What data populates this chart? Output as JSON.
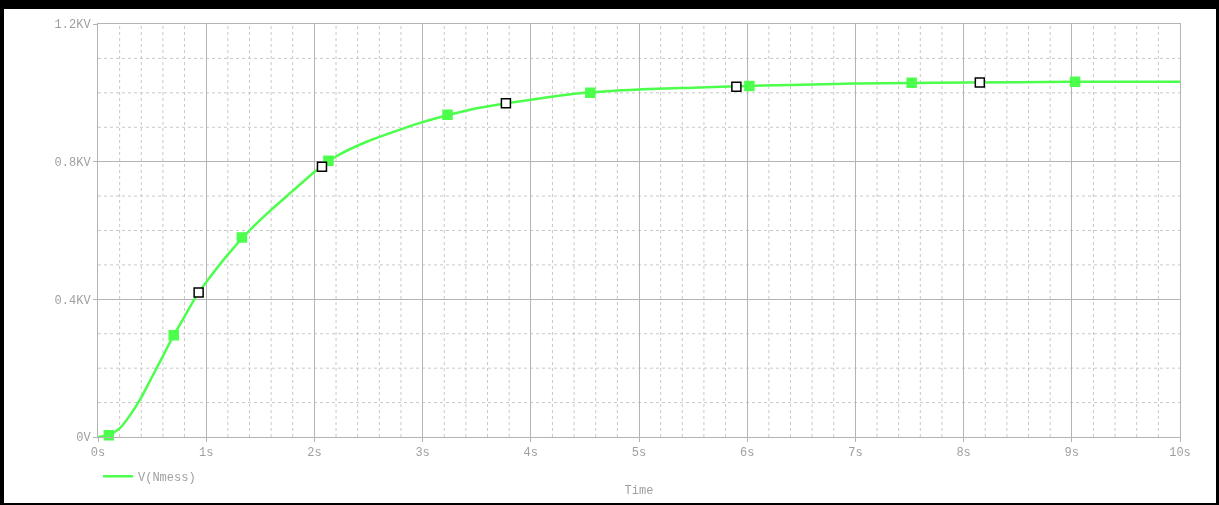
{
  "chart_data": {
    "type": "line",
    "xlabel": "Time",
    "xlim": [
      0,
      10
    ],
    "xticks": [
      {
        "value": 0,
        "label": "0s"
      },
      {
        "value": 1,
        "label": "1s"
      },
      {
        "value": 2,
        "label": "2s"
      },
      {
        "value": 3,
        "label": "3s"
      },
      {
        "value": 4,
        "label": "4s"
      },
      {
        "value": 5,
        "label": "5s"
      },
      {
        "value": 6,
        "label": "6s"
      },
      {
        "value": 7,
        "label": "7s"
      },
      {
        "value": 8,
        "label": "8s"
      },
      {
        "value": 9,
        "label": "9s"
      },
      {
        "value": 10,
        "label": "10s"
      }
    ],
    "ylim": [
      0,
      1.2
    ],
    "yticks": [
      {
        "value": 0,
        "label": "0V"
      },
      {
        "value": 0.4,
        "label": "0.4KV"
      },
      {
        "value": 0.8,
        "label": "0.8KV"
      },
      {
        "value": 1.2,
        "label": "1.2KV"
      }
    ],
    "grid": true,
    "legend": "bottom left",
    "line_style": "solid",
    "series": [
      {
        "name": "V(Nmess)",
        "color": "#4cff4c",
        "marker": "none",
        "x": [
          0,
          0.1,
          0.2,
          0.3,
          0.4,
          0.5,
          0.6,
          0.7,
          0.8,
          0.9,
          1.0,
          1.2,
          1.4,
          1.6,
          1.8,
          2.0,
          2.2,
          2.5,
          3.0,
          3.5,
          4.0,
          4.5,
          5.0,
          5.5,
          6.0,
          7.0,
          8.0,
          9.0,
          10.0
        ],
        "values": [
          0,
          0.005,
          0.025,
          0.065,
          0.115,
          0.175,
          0.235,
          0.296,
          0.35,
          0.405,
          0.45,
          0.53,
          0.6,
          0.66,
          0.715,
          0.77,
          0.815,
          0.86,
          0.915,
          0.955,
          0.98,
          1.0,
          1.01,
          1.015,
          1.02,
          1.027,
          1.03,
          1.032,
          1.032
        ]
      },
      {
        "type": "scatter",
        "color": "#4cff4c",
        "marker": "square",
        "x": [
          0.1,
          0.7,
          1.33,
          2.13,
          3.23,
          4.55,
          6.02,
          7.52,
          9.03
        ],
        "values": [
          0.005,
          0.296,
          0.58,
          0.803,
          0.936,
          1.0,
          1.02,
          1.029,
          1.032
        ]
      },
      {
        "type": "scatter",
        "color": "#000000",
        "marker": "square",
        "x": [
          0.93,
          2.07,
          3.77,
          5.9,
          8.15
        ],
        "values": [
          0.42,
          0.785,
          0.97,
          1.018,
          1.03
        ]
      }
    ]
  }
}
